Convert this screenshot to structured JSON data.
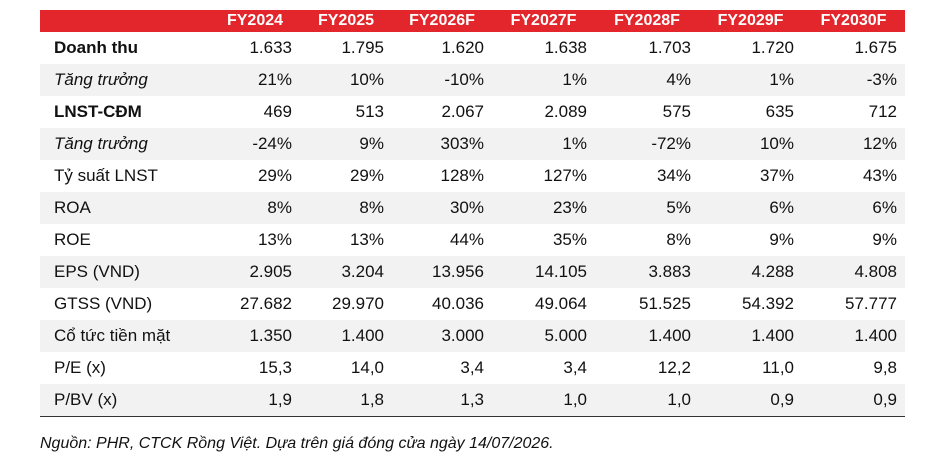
{
  "table": {
    "header": [
      "FY2024",
      "FY2025",
      "FY2026F",
      "FY2027F",
      "FY2028F",
      "FY2029F",
      "FY2030F"
    ],
    "rows": [
      [
        "Doanh thu",
        "1.633",
        "1.795",
        "1.620",
        "1.638",
        "1.703",
        "1.720",
        "1.675"
      ],
      [
        "Tăng trưởng",
        "21%",
        "10%",
        "-10%",
        "1%",
        "4%",
        "1%",
        "-3%"
      ],
      [
        "LNST-CĐM",
        "469",
        "513",
        "2.067",
        "2.089",
        "575",
        "635",
        "712"
      ],
      [
        "Tăng trưởng",
        "-24%",
        "9%",
        "303%",
        "1%",
        "-72%",
        "10%",
        "12%"
      ],
      [
        "Tỷ suất LNST",
        "29%",
        "29%",
        "128%",
        "127%",
        "34%",
        "37%",
        "43%"
      ],
      [
        "ROA",
        "8%",
        "8%",
        "30%",
        "23%",
        "5%",
        "6%",
        "6%"
      ],
      [
        "ROE",
        "13%",
        "13%",
        "44%",
        "35%",
        "8%",
        "9%",
        "9%"
      ],
      [
        "EPS (VND)",
        "2.905",
        "3.204",
        "13.956",
        "14.105",
        "3.883",
        "4.288",
        "4.808"
      ],
      [
        "GTSS (VND)",
        "27.682",
        "29.970",
        "40.036",
        "49.064",
        "51.525",
        "54.392",
        "57.777"
      ],
      [
        "Cổ tức tiền mặt",
        "1.350",
        "1.400",
        "3.000",
        "5.000",
        "1.400",
        "1.400",
        "1.400"
      ],
      [
        "P/E (x)",
        "15,3",
        "14,0",
        "3,4",
        "3,4",
        "12,2",
        "11,0",
        "9,8"
      ],
      [
        "P/BV (x)",
        "1,9",
        "1,8",
        "1,3",
        "1,0",
        "1,0",
        "0,9",
        "0,9"
      ]
    ]
  },
  "footnote": "Nguồn: PHR, CTCK Rồng Việt. Dựa trên giá đóng cửa ngày 14/07/2026."
}
